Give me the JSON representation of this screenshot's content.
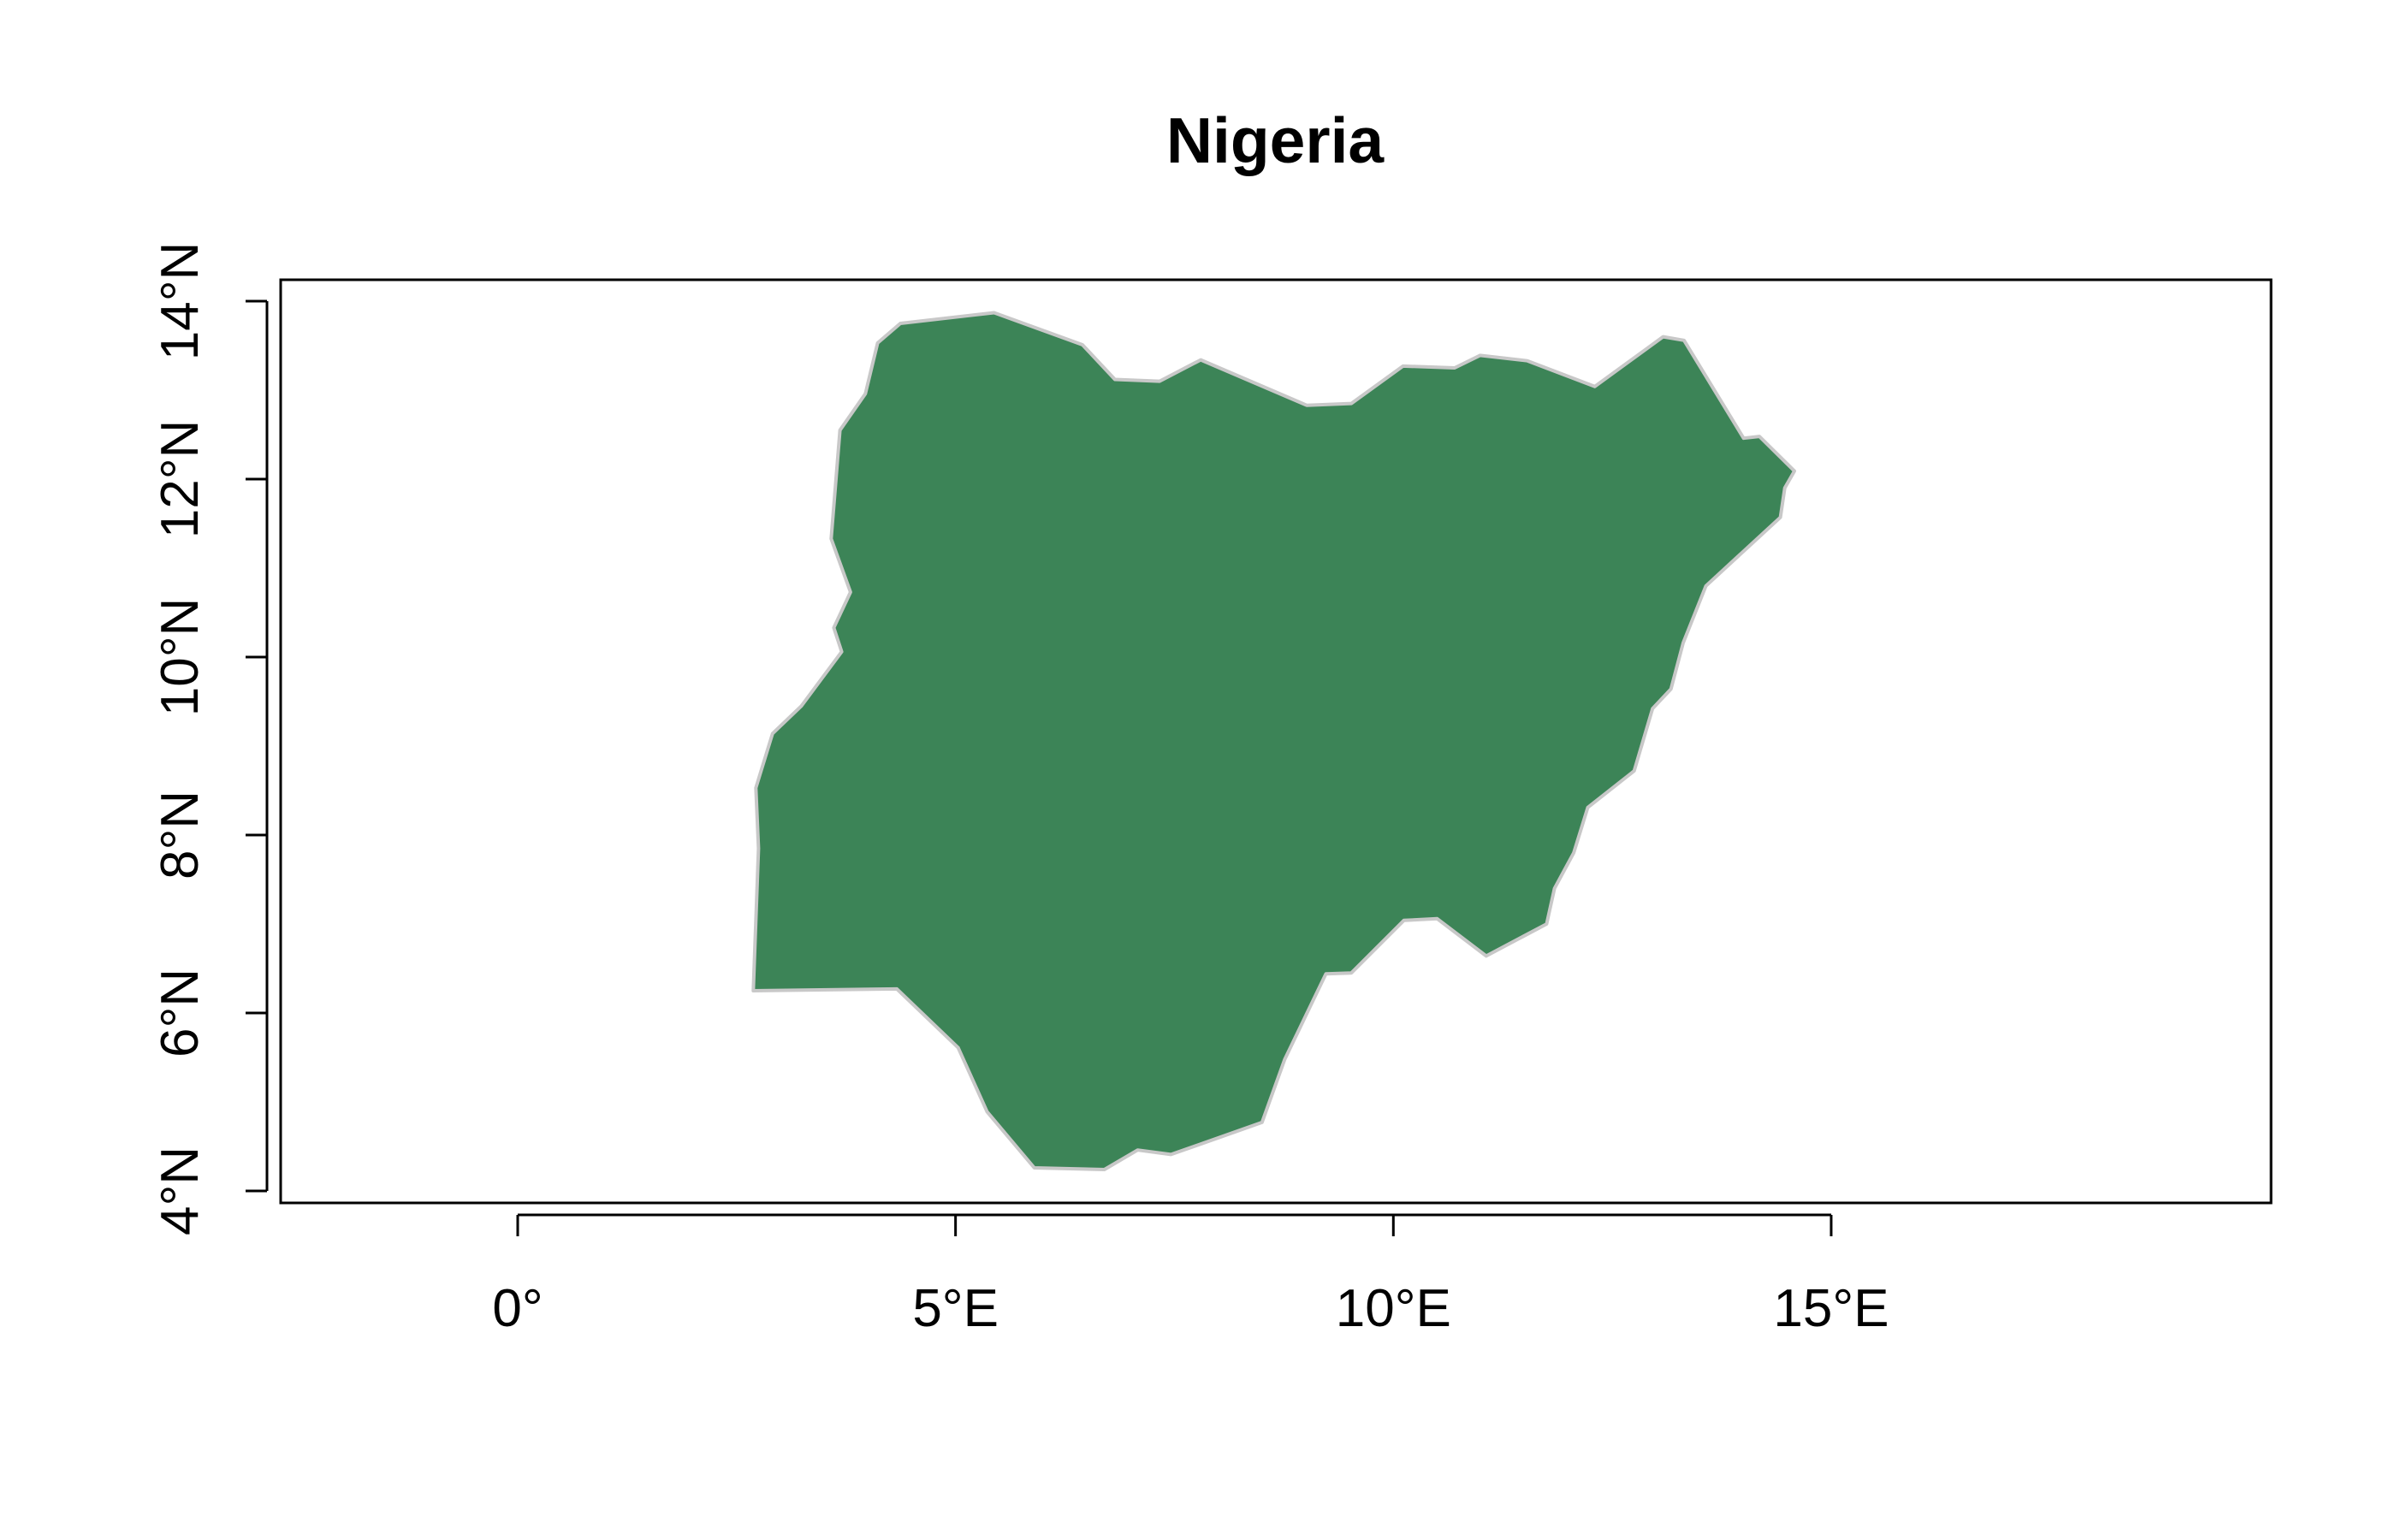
{
  "map": {
    "title": "Nigeria",
    "fill_color": "#3c8457",
    "border_color": "#c8c8c8",
    "x_axis": {
      "ticks": [
        {
          "value": 0,
          "label": "0°"
        },
        {
          "value": 5,
          "label": "5°E"
        },
        {
          "value": 10,
          "label": "10°E"
        },
        {
          "value": 15,
          "label": "15°E"
        }
      ],
      "range": [
        -2.7,
        19.9
      ]
    },
    "y_axis": {
      "ticks": [
        {
          "value": 4,
          "label": "4°N"
        },
        {
          "value": 6,
          "label": "6°N"
        },
        {
          "value": 8,
          "label": "8°N"
        },
        {
          "value": 10,
          "label": "10°N"
        },
        {
          "value": 12,
          "label": "12°N"
        },
        {
          "value": 14,
          "label": "14°N"
        }
      ],
      "range": [
        3.85,
        14.25
      ]
    },
    "outline_lonlat": [
      [
        2.69,
        6.25
      ],
      [
        2.75,
        7.85
      ],
      [
        2.72,
        8.53
      ],
      [
        2.91,
        9.14
      ],
      [
        3.24,
        9.45
      ],
      [
        3.7,
        10.06
      ],
      [
        3.61,
        10.33
      ],
      [
        3.8,
        10.73
      ],
      [
        3.58,
        11.33
      ],
      [
        3.68,
        12.55
      ],
      [
        3.97,
        12.96
      ],
      [
        4.11,
        13.53
      ],
      [
        4.37,
        13.75
      ],
      [
        5.44,
        13.87
      ],
      [
        6.45,
        13.51
      ],
      [
        6.82,
        13.12
      ],
      [
        7.33,
        13.1
      ],
      [
        7.8,
        13.34
      ],
      [
        9.01,
        12.83
      ],
      [
        9.52,
        12.85
      ],
      [
        10.11,
        13.27
      ],
      [
        10.7,
        13.25
      ],
      [
        10.99,
        13.39
      ],
      [
        11.53,
        13.33
      ],
      [
        12.3,
        13.04
      ],
      [
        13.08,
        13.6
      ],
      [
        13.32,
        13.56
      ],
      [
        14.0,
        12.46
      ],
      [
        14.18,
        12.48
      ],
      [
        14.58,
        12.09
      ],
      [
        14.47,
        11.9
      ],
      [
        14.42,
        11.57
      ],
      [
        13.57,
        10.8
      ],
      [
        13.31,
        10.16
      ],
      [
        13.17,
        9.64
      ],
      [
        12.96,
        9.42
      ],
      [
        12.75,
        8.72
      ],
      [
        12.22,
        8.31
      ],
      [
        12.06,
        7.8
      ],
      [
        11.84,
        7.4
      ],
      [
        11.75,
        7.0
      ],
      [
        11.06,
        6.64
      ],
      [
        10.5,
        7.06
      ],
      [
        10.12,
        7.04
      ],
      [
        9.52,
        6.45
      ],
      [
        9.23,
        6.44
      ],
      [
        8.76,
        5.48
      ],
      [
        8.5,
        4.77
      ],
      [
        7.46,
        4.41
      ],
      [
        7.08,
        4.46
      ],
      [
        6.7,
        4.24
      ],
      [
        5.9,
        4.26
      ],
      [
        5.36,
        4.89
      ],
      [
        5.03,
        5.61
      ],
      [
        4.33,
        6.27
      ]
    ]
  }
}
